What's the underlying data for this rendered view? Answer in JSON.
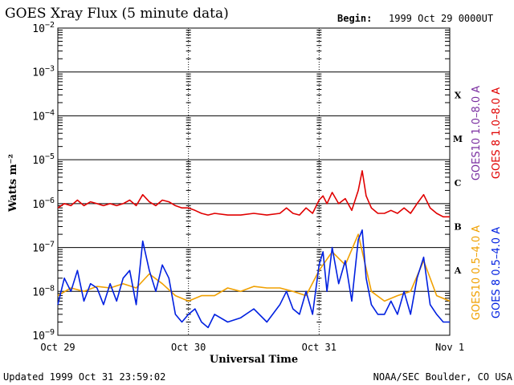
{
  "header": {
    "title": "GOES Xray Flux (5 minute data)",
    "begin_label": "Begin:",
    "begin_value": "1999 Oct 29 0000UT"
  },
  "footer": {
    "updated": "Updated 1999 Oct 31 23:59:02",
    "source": "NOAA/SEC Boulder, CO USA"
  },
  "chart_data": {
    "type": "line",
    "xlabel": "Universal Time",
    "ylabel": "Watts m⁻²",
    "x_ticks": [
      "Oct 29",
      "Oct 30",
      "Oct 31",
      "Nov 1"
    ],
    "x_unit": "days since 1999 Oct 29 0000UT",
    "xlim": [
      0,
      3
    ],
    "yscale": "log",
    "ylim": [
      1e-09,
      0.01
    ],
    "y_tick_exponents": [
      -9,
      -8,
      -7,
      -6,
      -5,
      -4,
      -3,
      -2
    ],
    "y_tick_label_base": "10",
    "flare_classes": [
      {
        "label": "A",
        "value": 3e-08
      },
      {
        "label": "B",
        "value": 3e-07
      },
      {
        "label": "C",
        "value": 3e-06
      },
      {
        "label": "M",
        "value": 3e-05
      },
      {
        "label": "X",
        "value": 0.0003
      }
    ],
    "grid": "horizontal at decades",
    "legend_placement": "right, vertical",
    "series": [
      {
        "name": "GOES 8 1.0–8.0 A",
        "color": "#e00000",
        "x": [
          0,
          0.05,
          0.1,
          0.15,
          0.2,
          0.25,
          0.3,
          0.35,
          0.4,
          0.45,
          0.5,
          0.55,
          0.6,
          0.65,
          0.7,
          0.75,
          0.8,
          0.85,
          0.9,
          0.95,
          1.0,
          1.05,
          1.1,
          1.15,
          1.2,
          1.3,
          1.4,
          1.5,
          1.6,
          1.7,
          1.75,
          1.8,
          1.85,
          1.9,
          1.95,
          2.0,
          2.03,
          2.06,
          2.1,
          2.15,
          2.2,
          2.25,
          2.3,
          2.33,
          2.36,
          2.4,
          2.45,
          2.5,
          2.55,
          2.6,
          2.65,
          2.7,
          2.75,
          2.8,
          2.85,
          2.9,
          2.95,
          3.0
        ],
        "values": [
          8e-07,
          1e-06,
          9e-07,
          1.2e-06,
          9e-07,
          1.1e-06,
          1e-06,
          9e-07,
          1e-06,
          9e-07,
          1e-06,
          1.2e-06,
          9e-07,
          1.6e-06,
          1.1e-06,
          9e-07,
          1.2e-06,
          1.1e-06,
          9e-07,
          8e-07,
          8e-07,
          7e-07,
          6e-07,
          5.5e-07,
          6e-07,
          5.5e-07,
          5.5e-07,
          6e-07,
          5.5e-07,
          6e-07,
          8e-07,
          6e-07,
          5.5e-07,
          8e-07,
          6e-07,
          1.2e-06,
          1.5e-06,
          1e-06,
          1.8e-06,
          1e-06,
          1.3e-06,
          7e-07,
          2e-06,
          5.6e-06,
          1.5e-06,
          8e-07,
          6e-07,
          6e-07,
          7e-07,
          6e-07,
          8e-07,
          6e-07,
          1e-06,
          1.6e-06,
          8e-07,
          6e-07,
          5e-07,
          5e-07
        ]
      },
      {
        "name": "GOES10 1.0–8.0 A",
        "color": "#7a2ea0",
        "x": [],
        "values": []
      },
      {
        "name": "GOES 8 0.5–4.0 A",
        "color": "#0020e0",
        "x": [
          0,
          0.05,
          0.1,
          0.15,
          0.2,
          0.25,
          0.3,
          0.35,
          0.4,
          0.45,
          0.5,
          0.55,
          0.6,
          0.65,
          0.7,
          0.75,
          0.8,
          0.85,
          0.9,
          0.95,
          1.0,
          1.05,
          1.1,
          1.15,
          1.2,
          1.3,
          1.4,
          1.5,
          1.6,
          1.7,
          1.75,
          1.8,
          1.85,
          1.9,
          1.95,
          2.0,
          2.03,
          2.06,
          2.1,
          2.15,
          2.2,
          2.25,
          2.3,
          2.33,
          2.36,
          2.4,
          2.45,
          2.5,
          2.55,
          2.6,
          2.65,
          2.7,
          2.75,
          2.8,
          2.85,
          2.9,
          2.95,
          3.0
        ],
        "values": [
          5e-09,
          2e-08,
          1e-08,
          3e-08,
          6e-09,
          1.5e-08,
          1.2e-08,
          5e-09,
          1.5e-08,
          6e-09,
          2e-08,
          3e-08,
          5e-09,
          1.4e-07,
          3e-08,
          1e-08,
          4e-08,
          2e-08,
          3e-09,
          2e-09,
          3e-09,
          4e-09,
          2e-09,
          1.5e-09,
          3e-09,
          2e-09,
          2.5e-09,
          4e-09,
          2e-09,
          5e-09,
          1e-08,
          4e-09,
          3e-09,
          1e-08,
          3e-09,
          4e-08,
          8e-08,
          1e-08,
          1e-07,
          1.5e-08,
          5e-08,
          6e-09,
          1.5e-07,
          2.5e-07,
          2e-08,
          5e-09,
          3e-09,
          3e-09,
          6e-09,
          3e-09,
          1e-08,
          3e-09,
          2e-08,
          6e-08,
          5e-09,
          3e-09,
          2e-09,
          2e-09
        ]
      },
      {
        "name": "GOES10 0.5–4.0 A",
        "color": "#f0a000",
        "x": [
          0,
          0.1,
          0.2,
          0.3,
          0.4,
          0.5,
          0.6,
          0.7,
          0.8,
          0.9,
          1.0,
          1.1,
          1.2,
          1.3,
          1.4,
          1.5,
          1.6,
          1.7,
          1.8,
          1.9,
          2.0,
          2.1,
          2.2,
          2.3,
          2.4,
          2.5,
          2.6,
          2.7,
          2.8,
          2.9,
          3.0
        ],
        "values": [
          8e-09,
          1.2e-08,
          1e-08,
          1.3e-08,
          1.2e-08,
          1.5e-08,
          1.2e-08,
          2.5e-08,
          1.5e-08,
          8e-09,
          6e-09,
          8e-09,
          8e-09,
          1.2e-08,
          1e-08,
          1.3e-08,
          1.2e-08,
          1.2e-08,
          1e-08,
          8e-09,
          3e-08,
          8e-08,
          4e-08,
          2e-07,
          1e-08,
          6e-09,
          8e-09,
          1e-08,
          5e-08,
          8e-09,
          6e-09
        ]
      }
    ]
  }
}
